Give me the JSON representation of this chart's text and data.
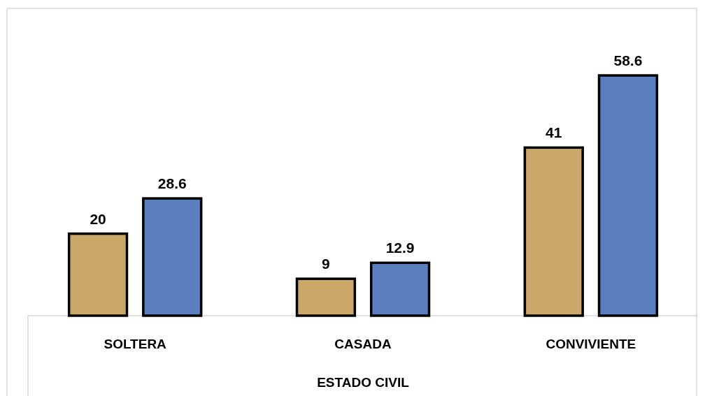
{
  "chart_data": {
    "type": "bar",
    "xlabel": "ESTADO CIVIL",
    "categories": [
      "SOLTERA",
      "CASADA",
      "CONVIVIENTE"
    ],
    "series": [
      {
        "color": "#c9a86a",
        "values": [
          20,
          9,
          41
        ]
      },
      {
        "color": "#5b7fbf",
        "values": [
          28.6,
          12.9,
          58.6
        ]
      }
    ],
    "data_labels": true
  }
}
